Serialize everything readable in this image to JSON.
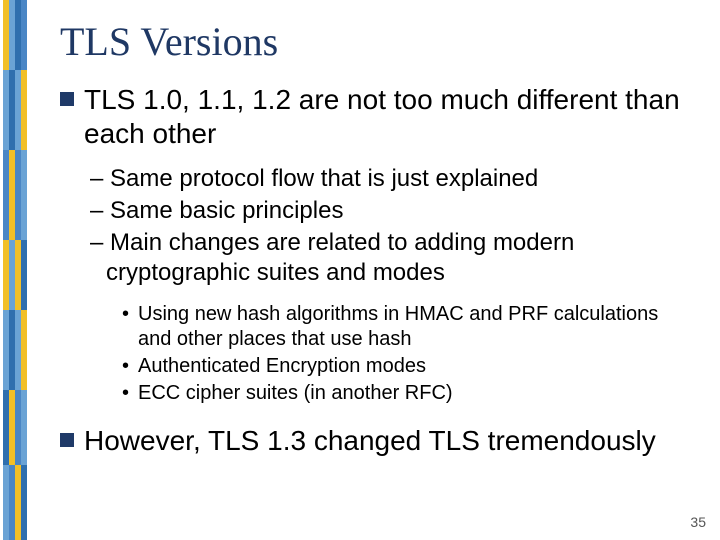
{
  "stripe_colors": {
    "s1": [
      "#f2c028",
      "#6aa3d5",
      "#4a86c5",
      "#f2c028",
      "#6aa3d5",
      "#2f6fae",
      "#6aa3d5"
    ],
    "s2": [
      "#6aa3d5",
      "#2f6fae",
      "#f2c028",
      "#6aa3d5",
      "#2f6fae",
      "#f2c028",
      "#4a86c5"
    ],
    "s3": [
      "#2f6fae",
      "#6aa3d5",
      "#4a86c5",
      "#f2c028",
      "#6aa3d5",
      "#4a86c5",
      "#f2c028"
    ],
    "s4": [
      "#4a86c5",
      "#f2c028",
      "#6aa3d5",
      "#2f6fae",
      "#f2c028",
      "#6aa3d5",
      "#2f6fae"
    ],
    "seg_heights": [
      70,
      80,
      90,
      70,
      80,
      75,
      75
    ]
  },
  "title": "TLS Versions",
  "bullets": [
    {
      "text": "TLS 1.0, 1.1, 1.2 are not too much different than each other",
      "dashes": [
        "– Same protocol flow that is just explained",
        "– Same basic principles",
        "– Main changes are related to adding modern cryptographic suites and modes"
      ],
      "dots": [
        "Using new hash algorithms in HMAC and PRF calculations and other places that use hash",
        "Authenticated Encryption modes",
        "ECC cipher suites (in another RFC)"
      ]
    },
    {
      "text": "However, TLS 1.3 changed TLS tremendously",
      "dashes": [],
      "dots": []
    }
  ],
  "page_number": "35",
  "colors": {
    "title_color": "#1f3864",
    "bullet_square": "#1f3a68",
    "text_color": "#000000",
    "background": "#ffffff"
  },
  "fontsizes": {
    "title": 40,
    "bullet": 28,
    "dash": 24,
    "dot": 20,
    "pagenum": 14
  }
}
